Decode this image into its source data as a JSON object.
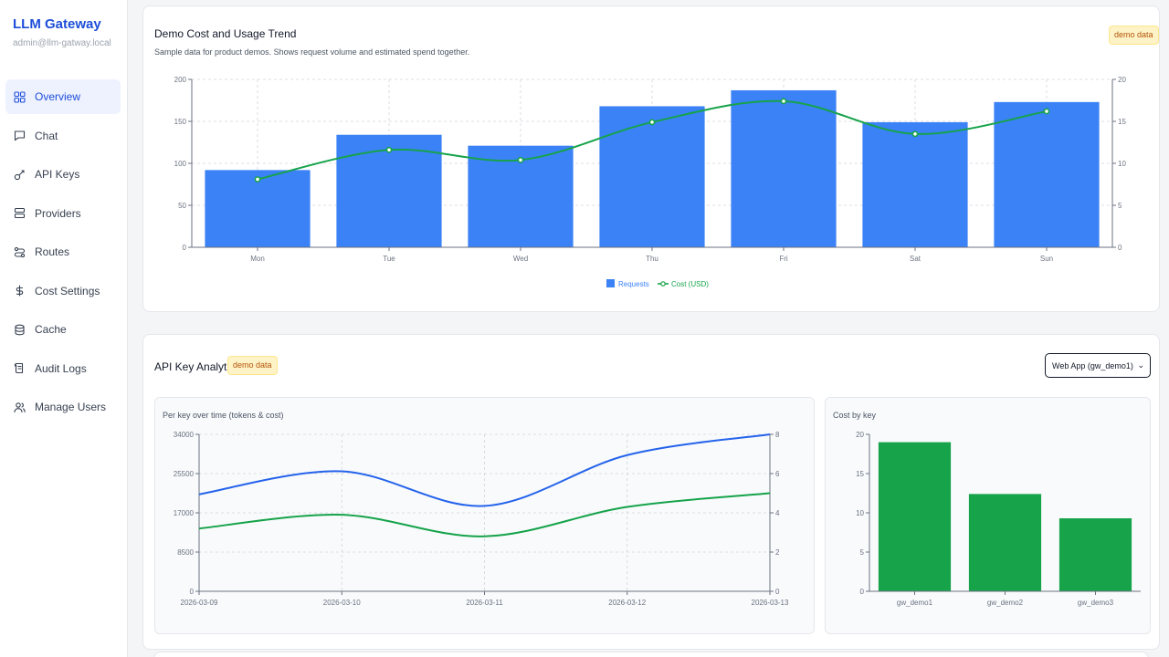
{
  "sidebar": {
    "brand": "LLM Gateway",
    "user": "admin@llm-gatway.local",
    "items": [
      {
        "label": "Overview",
        "icon": "grid-icon",
        "active": true
      },
      {
        "label": "Chat",
        "icon": "chat-icon"
      },
      {
        "label": "API Keys",
        "icon": "key-icon"
      },
      {
        "label": "Providers",
        "icon": "server-icon"
      },
      {
        "label": "Routes",
        "icon": "route-icon"
      },
      {
        "label": "Cost Settings",
        "icon": "dollar-icon"
      },
      {
        "label": "Cache",
        "icon": "database-icon"
      },
      {
        "label": "Audit Logs",
        "icon": "scroll-icon"
      },
      {
        "label": "Manage Users",
        "icon": "users-icon"
      }
    ]
  },
  "trend": {
    "title": "Demo Cost and Usage Trend",
    "subtitle": "Sample data for product demos. Shows request volume and estimated spend together.",
    "badge": "demo data"
  },
  "analytics": {
    "title": "API Key Analytics",
    "badge": "demo data",
    "selected_key": "Web App (gw_demo1)",
    "panel_time_title": "Per key over time (tokens & cost)",
    "panel_cost_title": "Cost by key"
  },
  "colors": {
    "requests": "#3b82f6",
    "cost": "#16a34a",
    "tokens": "#2563eb",
    "bar_key": "#16a34a"
  },
  "chart_data": [
    {
      "type": "bar",
      "title": "Demo Cost and Usage Trend",
      "categories": [
        "Mon",
        "Tue",
        "Wed",
        "Thu",
        "Fri",
        "Sat",
        "Sun"
      ],
      "series": [
        {
          "name": "Requests",
          "kind": "bar",
          "axis": "left",
          "values": [
            92,
            134,
            121,
            168,
            187,
            149,
            173
          ]
        },
        {
          "name": "Cost (USD)",
          "kind": "line",
          "axis": "right",
          "values": [
            8.1,
            11.6,
            10.4,
            14.9,
            17.4,
            13.5,
            16.2
          ]
        }
      ],
      "y_left": {
        "ylim": [
          0,
          200
        ],
        "ticks": [
          "0",
          "50",
          "100",
          "150",
          "200"
        ]
      },
      "y_right": {
        "ylim": [
          0,
          20
        ],
        "ticks": [
          "0",
          "5",
          "10",
          "15",
          "20"
        ]
      },
      "legend": "bottom",
      "grid": true
    },
    {
      "type": "line",
      "title": "Per key over time (tokens & cost)",
      "x": [
        "2026-03-09",
        "2026-03-10",
        "2026-03-11",
        "2026-03-12",
        "2026-03-13"
      ],
      "series": [
        {
          "kind": "tokens",
          "axis": "left",
          "values": [
            21000,
            26000,
            18500,
            29500,
            34000
          ]
        },
        {
          "kind": "cost",
          "axis": "right",
          "values": [
            3.2,
            3.9,
            2.8,
            4.3,
            5.0
          ]
        }
      ],
      "y_left": {
        "ylim": [
          0,
          34000
        ],
        "ticks": [
          "0",
          "8500",
          "17000",
          "25500",
          "34000"
        ]
      },
      "y_right": {
        "ylim": [
          0,
          8
        ],
        "ticks": [
          "0",
          "2",
          "4",
          "6",
          "8"
        ]
      },
      "grid": true
    },
    {
      "type": "bar",
      "title": "Cost by key",
      "categories": [
        "gw_demo1",
        "gw_demo2",
        "gw_demo3"
      ],
      "values": [
        19.0,
        12.4,
        9.3
      ],
      "ylim": [
        0,
        20
      ],
      "ticks": [
        "0",
        "5",
        "10",
        "15",
        "20"
      ],
      "grid": false
    }
  ]
}
